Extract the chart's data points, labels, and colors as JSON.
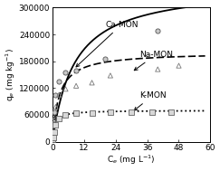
{
  "xlabel": "C$_e$ (mg L$^{-1}$)",
  "ylabel": "q$_e$ (mg kg$^{-1}$)",
  "xlim": [
    0,
    60
  ],
  "ylim": [
    0,
    300000
  ],
  "xticks": [
    0,
    12,
    24,
    36,
    48,
    60
  ],
  "yticks": [
    0,
    60000,
    120000,
    180000,
    240000,
    300000
  ],
  "ytick_labels": [
    "0",
    "60000",
    "120000",
    "180000",
    "240000",
    "300000"
  ],
  "ca_scatter_x": [
    0.15,
    0.3,
    0.6,
    1.2,
    2.5,
    5.0,
    9.0,
    20.0,
    40.0
  ],
  "ca_scatter_y": [
    15000,
    35000,
    65000,
    105000,
    135000,
    155000,
    160000,
    185000,
    248000
  ],
  "na_scatter_x": [
    0.15,
    0.3,
    0.6,
    1.2,
    2.5,
    5.0,
    9.0,
    15.0,
    22.0,
    40.0,
    48.0
  ],
  "na_scatter_y": [
    10000,
    20000,
    50000,
    78000,
    105000,
    118000,
    125000,
    132000,
    148000,
    162000,
    170000
  ],
  "k_scatter_x": [
    0.15,
    0.3,
    0.6,
    1.2,
    2.5,
    5.0,
    9.0,
    15.0,
    22.0,
    30.0,
    38.0,
    45.0
  ],
  "k_scatter_y": [
    5000,
    10000,
    22000,
    38000,
    52000,
    60000,
    63000,
    64000,
    65000,
    65000,
    65000,
    65000
  ],
  "ca_curve_params": {
    "qmax": 350000,
    "K": 0.12
  },
  "na_curve_params": {
    "qmax": 200000,
    "K": 0.4
  },
  "k_curve_params": {
    "qmax": 70000,
    "K": 1.2
  },
  "ca_label": "Ca-MON",
  "na_label": "Na-MON",
  "k_label": "K-MON",
  "background_color": "#ffffff",
  "figsize": [
    2.43,
    1.89
  ],
  "dpi": 100,
  "font_size": 6.5
}
